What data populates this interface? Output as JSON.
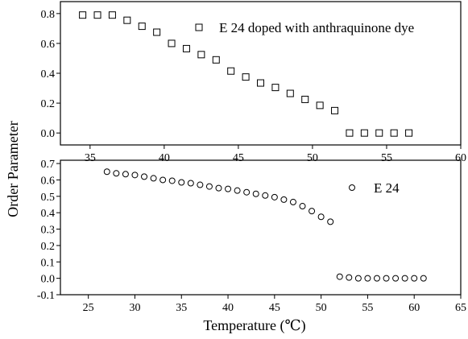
{
  "figure": {
    "ylabel": "Order Parameter",
    "xlabel": "Temperature (℃)"
  },
  "chart_data": [
    {
      "type": "scatter",
      "panel": "top",
      "marker": "square",
      "xlim": [
        33,
        60
      ],
      "ylim": [
        -0.08,
        0.88
      ],
      "x_ticks": [
        35,
        40,
        45,
        50,
        55,
        60
      ],
      "y_ticks": [
        0.0,
        0.2,
        0.4,
        0.6,
        0.8
      ],
      "x_tick_labels": [
        "35",
        "40",
        "45",
        "50",
        "55",
        "60"
      ],
      "y_tick_labels": [
        "0.0",
        "0.2",
        "0.4",
        "0.6",
        "0.8"
      ],
      "legend_position": "top-right",
      "series": [
        {
          "name": "E 24 doped with anthraquinone dye",
          "x": [
            34.5,
            35.5,
            36.5,
            37.5,
            38.5,
            39.5,
            40.5,
            41.5,
            42.5,
            43.5,
            44.5,
            45.5,
            46.5,
            47.5,
            48.5,
            49.5,
            50.5,
            51.5,
            52.5,
            53.5,
            54.5,
            55.5,
            56.5
          ],
          "y": [
            0.79,
            0.79,
            0.79,
            0.755,
            0.715,
            0.675,
            0.6,
            0.565,
            0.525,
            0.49,
            0.415,
            0.375,
            0.335,
            0.305,
            0.265,
            0.225,
            0.185,
            0.15,
            0.0,
            0.0,
            0.0,
            0.0,
            0.0
          ]
        }
      ]
    },
    {
      "type": "scatter",
      "panel": "bottom",
      "marker": "circle",
      "xlim": [
        22,
        65
      ],
      "ylim": [
        -0.1,
        0.72
      ],
      "x_ticks": [
        25,
        30,
        35,
        40,
        45,
        50,
        55,
        60,
        65
      ],
      "y_ticks": [
        -0.1,
        0.0,
        0.1,
        0.2,
        0.3,
        0.4,
        0.5,
        0.6,
        0.7
      ],
      "x_tick_labels": [
        "25",
        "30",
        "35",
        "40",
        "45",
        "50",
        "55",
        "60",
        "65"
      ],
      "y_tick_labels": [
        "-0.1",
        "0.0",
        "0.1",
        "0.2",
        "0.3",
        "0.4",
        "0.5",
        "0.6",
        "0.7"
      ],
      "legend_position": "right",
      "series": [
        {
          "name": "E 24",
          "x": [
            27.0,
            28.0,
            29.0,
            30.0,
            31.0,
            32.0,
            33.0,
            34.0,
            35.0,
            36.0,
            37.0,
            38.0,
            39.0,
            40.0,
            41.0,
            42.0,
            43.0,
            44.0,
            45.0,
            46.0,
            47.0,
            48.0,
            49.0,
            50.0,
            51.0,
            52.0,
            53.0,
            54.0,
            55.0,
            56.0,
            57.0,
            58.0,
            59.0,
            60.0,
            61.0
          ],
          "y": [
            0.65,
            0.64,
            0.635,
            0.63,
            0.62,
            0.61,
            0.6,
            0.595,
            0.585,
            0.58,
            0.57,
            0.56,
            0.55,
            0.545,
            0.535,
            0.525,
            0.515,
            0.505,
            0.495,
            0.48,
            0.465,
            0.44,
            0.41,
            0.375,
            0.345,
            0.01,
            0.005,
            0.0,
            0.0,
            0.0,
            0.0,
            0.0,
            0.0,
            0.0,
            0.0
          ]
        }
      ]
    }
  ]
}
